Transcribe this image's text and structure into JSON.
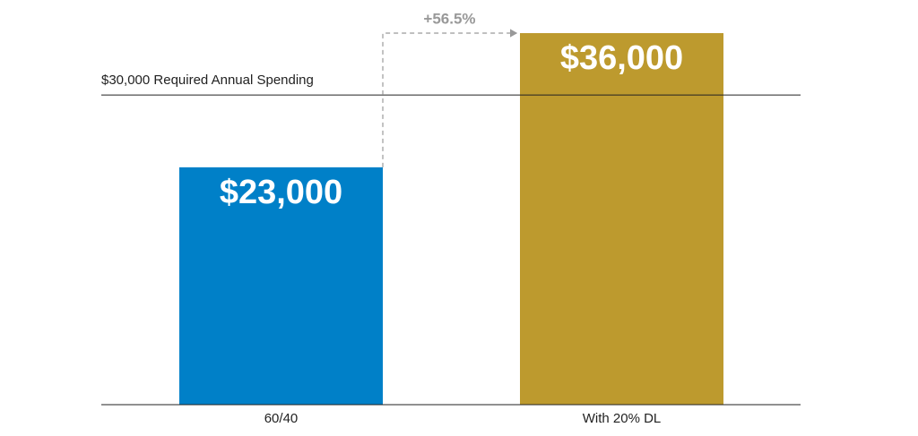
{
  "chart_data": {
    "type": "bar",
    "categories": [
      "60/40",
      "With 20% DL"
    ],
    "values": [
      23000,
      36000
    ],
    "value_labels": [
      "$23,000",
      "$36,000"
    ],
    "colors": [
      "#0080c8",
      "#bd9a2e"
    ],
    "reference_line": {
      "value": 30000,
      "label": "$30,000 Required Annual Spending"
    },
    "annotation": "+56.5%"
  }
}
